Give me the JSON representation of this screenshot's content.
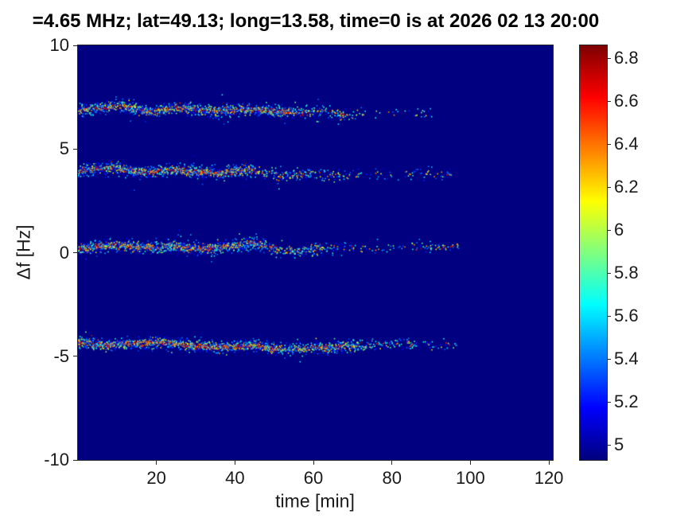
{
  "figure": {
    "title": "=4.65 MHz;  lat=49.13; long=13.58, time=0 is at 2026 02 13 20:00"
  },
  "chart_data": {
    "type": "heatmap",
    "subtype": "doppler-spectrogram",
    "title": "=4.65 MHz;  lat=49.13; long=13.58, time=0 is at 2026 02 13 20:00",
    "xlabel": "time [min]",
    "ylabel": "Δf [Hz]",
    "xlim": [
      0,
      121
    ],
    "ylim": [
      -10,
      10
    ],
    "xticks": [
      20,
      40,
      60,
      80,
      100,
      120
    ],
    "yticks": [
      -10,
      -5,
      0,
      5,
      10
    ],
    "grid": false,
    "colormap": "jet",
    "background_value_color": "#000090",
    "colorbar": {
      "position": "right",
      "cmin": 4.93,
      "cmax": 6.86,
      "ticks": [
        5,
        5.2,
        5.4,
        5.6,
        5.8,
        6,
        6.2,
        6.4,
        6.6,
        6.8
      ]
    },
    "description": "Four wavy horizontal speckled traces (jet colormap, values ~5 to 6.9) over a dark blue background near Δf = +7, +4, +0.3 and -4.4 Hz, dense and hot (red/orange cores) for the first ~50 min, fading to sparse blue speckles by ~70-97 min.",
    "series": [
      {
        "name": "trace-plus-7Hz",
        "center_points": [
          [
            0,
            6.9
          ],
          [
            5,
            7.0
          ],
          [
            10,
            7.15
          ],
          [
            14,
            6.95
          ],
          [
            18,
            6.8
          ],
          [
            22,
            6.95
          ],
          [
            26,
            7.0
          ],
          [
            30,
            6.95
          ],
          [
            34,
            6.85
          ],
          [
            38,
            6.9
          ],
          [
            42,
            6.95
          ],
          [
            46,
            6.9
          ],
          [
            50,
            6.85
          ],
          [
            54,
            6.8
          ],
          [
            58,
            6.78
          ],
          [
            62,
            6.82
          ],
          [
            66,
            6.72
          ],
          [
            70,
            6.7
          ],
          [
            74,
            6.75
          ],
          [
            78,
            6.8
          ],
          [
            82,
            6.78
          ],
          [
            86,
            6.72
          ],
          [
            90,
            6.7
          ]
        ],
        "segments": [
          [
            0,
            55,
            0.95,
            0.5
          ],
          [
            55,
            68,
            0.65,
            0.3
          ],
          [
            68,
            77,
            0.25,
            0.1
          ],
          [
            79,
            90,
            0.3,
            0.12
          ]
        ]
      },
      {
        "name": "trace-plus-4Hz",
        "center_points": [
          [
            0,
            3.95
          ],
          [
            4,
            4.05
          ],
          [
            8,
            4.15
          ],
          [
            12,
            4.0
          ],
          [
            16,
            3.9
          ],
          [
            20,
            3.95
          ],
          [
            24,
            4.05
          ],
          [
            28,
            3.95
          ],
          [
            32,
            3.9
          ],
          [
            36,
            3.85
          ],
          [
            40,
            3.95
          ],
          [
            44,
            4.0
          ],
          [
            48,
            3.85
          ],
          [
            52,
            3.7
          ],
          [
            56,
            3.75
          ],
          [
            60,
            3.85
          ],
          [
            64,
            3.75
          ],
          [
            68,
            3.7
          ],
          [
            72,
            3.78
          ],
          [
            76,
            3.82
          ],
          [
            80,
            3.72
          ],
          [
            84,
            3.8
          ],
          [
            88,
            3.85
          ],
          [
            92,
            3.8
          ],
          [
            95,
            3.85
          ]
        ],
        "segments": [
          [
            0,
            46,
            0.95,
            0.55
          ],
          [
            46,
            60,
            0.6,
            0.3
          ],
          [
            60,
            72,
            0.35,
            0.15
          ],
          [
            73,
            82,
            0.3,
            0.1
          ],
          [
            83,
            95,
            0.35,
            0.15
          ]
        ]
      },
      {
        "name": "trace-0Hz",
        "center_points": [
          [
            0,
            0.2
          ],
          [
            4,
            0.3
          ],
          [
            8,
            0.4
          ],
          [
            12,
            0.35
          ],
          [
            16,
            0.25
          ],
          [
            20,
            0.3
          ],
          [
            24,
            0.35
          ],
          [
            28,
            0.25
          ],
          [
            32,
            0.2
          ],
          [
            36,
            0.3
          ],
          [
            40,
            0.35
          ],
          [
            44,
            0.5
          ],
          [
            47,
            0.4
          ],
          [
            50,
            0.2
          ],
          [
            54,
            0.1
          ],
          [
            58,
            0.15
          ],
          [
            62,
            0.25
          ],
          [
            66,
            0.3
          ],
          [
            70,
            0.25
          ],
          [
            74,
            0.2
          ],
          [
            78,
            0.25
          ],
          [
            82,
            0.3
          ],
          [
            86,
            0.3
          ],
          [
            90,
            0.25
          ],
          [
            94,
            0.3
          ],
          [
            97,
            0.35
          ]
        ],
        "segments": [
          [
            0,
            48,
            1.0,
            0.6
          ],
          [
            48,
            62,
            0.7,
            0.35
          ],
          [
            62,
            70,
            0.4,
            0.2
          ],
          [
            70,
            84,
            0.25,
            0.08
          ],
          [
            85,
            97,
            0.35,
            0.2
          ]
        ]
      },
      {
        "name": "trace-minus-4.4Hz",
        "center_points": [
          [
            0,
            -4.3
          ],
          [
            4,
            -4.4
          ],
          [
            8,
            -4.45
          ],
          [
            12,
            -4.35
          ],
          [
            16,
            -4.4
          ],
          [
            20,
            -4.3
          ],
          [
            24,
            -4.35
          ],
          [
            28,
            -4.45
          ],
          [
            32,
            -4.5
          ],
          [
            36,
            -4.55
          ],
          [
            40,
            -4.5
          ],
          [
            44,
            -4.45
          ],
          [
            48,
            -4.55
          ],
          [
            52,
            -4.65
          ],
          [
            56,
            -4.6
          ],
          [
            60,
            -4.55
          ],
          [
            64,
            -4.6
          ],
          [
            68,
            -4.5
          ],
          [
            72,
            -4.45
          ],
          [
            76,
            -4.4
          ],
          [
            80,
            -4.38
          ],
          [
            84,
            -4.35
          ],
          [
            88,
            -4.4
          ],
          [
            92,
            -4.42
          ],
          [
            96,
            -4.45
          ]
        ],
        "segments": [
          [
            0,
            52,
            1.0,
            0.65
          ],
          [
            52,
            72,
            0.85,
            0.45
          ],
          [
            72,
            86,
            0.5,
            0.2
          ],
          [
            86,
            97,
            0.3,
            0.1
          ]
        ]
      }
    ]
  }
}
